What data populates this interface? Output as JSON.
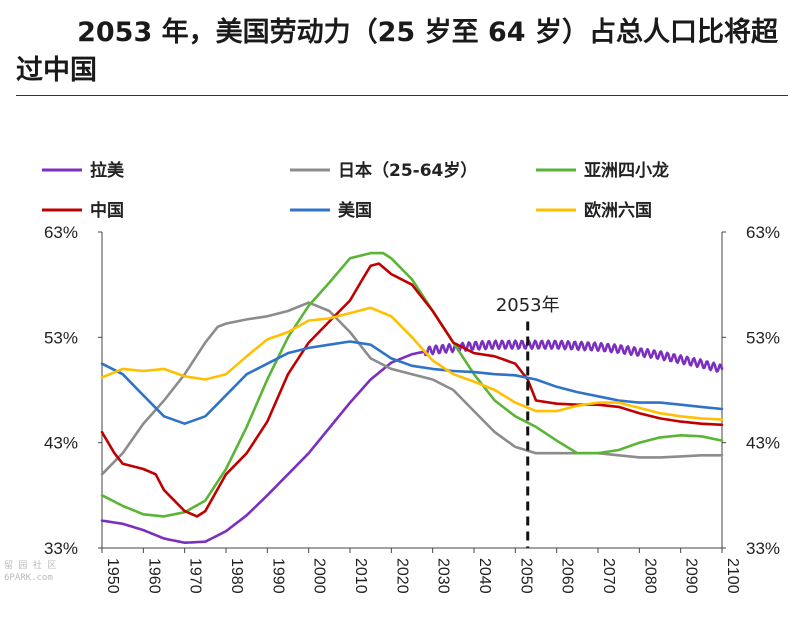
{
  "title": {
    "line1": "2053 年，美国劳动力（25 岁至 64 岁）占总人口比将超",
    "line2": "过中国"
  },
  "watermark": {
    "line1": "留 园 社 区",
    "line2": "6PARK.com"
  },
  "chart_data": {
    "type": "line",
    "x_ticks": [
      "1950",
      "1960",
      "1970",
      "1980",
      "1990",
      "2000",
      "2010",
      "2020",
      "2030",
      "2040",
      "2050",
      "2060",
      "2070",
      "2080",
      "2090",
      "2100"
    ],
    "y_ticks_left": [
      "63%",
      "53%",
      "43%",
      "33%"
    ],
    "y_ticks_right": [
      "63%",
      "53%",
      "43%",
      "33%"
    ],
    "ylim": [
      33,
      63
    ],
    "xlim": [
      1950,
      2100
    ],
    "legend_placement": "top",
    "annotation": {
      "x": 2053,
      "label": "2053年"
    },
    "series": [
      {
        "name": "拉美",
        "color": "#7b2fbf",
        "wavy_from": 2028,
        "points": [
          [
            1950,
            35.6
          ],
          [
            1955,
            35.3
          ],
          [
            1960,
            34.7
          ],
          [
            1965,
            33.9
          ],
          [
            1970,
            33.5
          ],
          [
            1975,
            33.6
          ],
          [
            1980,
            34.6
          ],
          [
            1985,
            36.1
          ],
          [
            1990,
            38
          ],
          [
            1995,
            40
          ],
          [
            2000,
            42
          ],
          [
            2005,
            44.4
          ],
          [
            2010,
            46.8
          ],
          [
            2015,
            49
          ],
          [
            2020,
            50.6
          ],
          [
            2025,
            51.4
          ],
          [
            2030,
            51.8
          ],
          [
            2035,
            52
          ],
          [
            2040,
            52.2
          ],
          [
            2045,
            52.3
          ],
          [
            2050,
            52.3
          ],
          [
            2055,
            52.3
          ],
          [
            2060,
            52.3
          ],
          [
            2065,
            52.2
          ],
          [
            2070,
            52.1
          ],
          [
            2075,
            51.9
          ],
          [
            2080,
            51.6
          ],
          [
            2085,
            51.3
          ],
          [
            2090,
            50.9
          ],
          [
            2095,
            50.5
          ],
          [
            2100,
            50
          ]
        ]
      },
      {
        "name": "日本（25-64岁）",
        "color": "#8c8c8c",
        "points": [
          [
            1950,
            40
          ],
          [
            1955,
            42
          ],
          [
            1960,
            44.8
          ],
          [
            1965,
            47
          ],
          [
            1970,
            49.5
          ],
          [
            1975,
            52.5
          ],
          [
            1978,
            54
          ],
          [
            1980,
            54.3
          ],
          [
            1985,
            54.7
          ],
          [
            1990,
            55
          ],
          [
            1995,
            55.5
          ],
          [
            2000,
            56.3
          ],
          [
            2005,
            55.5
          ],
          [
            2010,
            53.5
          ],
          [
            2015,
            51
          ],
          [
            2020,
            50
          ],
          [
            2025,
            49.5
          ],
          [
            2030,
            49
          ],
          [
            2035,
            48
          ],
          [
            2040,
            46
          ],
          [
            2045,
            44
          ],
          [
            2050,
            42.6
          ],
          [
            2055,
            42
          ],
          [
            2060,
            42
          ],
          [
            2065,
            42
          ],
          [
            2070,
            42
          ],
          [
            2075,
            41.8
          ],
          [
            2080,
            41.6
          ],
          [
            2085,
            41.6
          ],
          [
            2090,
            41.7
          ],
          [
            2095,
            41.8
          ],
          [
            2100,
            41.8
          ]
        ]
      },
      {
        "name": "亚洲四小龙",
        "color": "#5ab435",
        "points": [
          [
            1950,
            38
          ],
          [
            1955,
            37
          ],
          [
            1960,
            36.2
          ],
          [
            1965,
            36
          ],
          [
            1970,
            36.4
          ],
          [
            1975,
            37.5
          ],
          [
            1980,
            40.5
          ],
          [
            1985,
            44.5
          ],
          [
            1990,
            49
          ],
          [
            1995,
            53
          ],
          [
            2000,
            56
          ],
          [
            2005,
            58.2
          ],
          [
            2010,
            60.5
          ],
          [
            2015,
            61
          ],
          [
            2018,
            61
          ],
          [
            2020,
            60.5
          ],
          [
            2025,
            58.5
          ],
          [
            2030,
            55.5
          ],
          [
            2035,
            52.5
          ],
          [
            2040,
            49.5
          ],
          [
            2045,
            47
          ],
          [
            2050,
            45.5
          ],
          [
            2055,
            44.5
          ],
          [
            2060,
            43.2
          ],
          [
            2065,
            42
          ],
          [
            2070,
            42
          ],
          [
            2075,
            42.3
          ],
          [
            2080,
            43
          ],
          [
            2085,
            43.5
          ],
          [
            2090,
            43.7
          ],
          [
            2095,
            43.6
          ],
          [
            2100,
            43.2
          ]
        ]
      },
      {
        "name": "中国",
        "color": "#c00000",
        "points": [
          [
            1950,
            44
          ],
          [
            1953,
            42
          ],
          [
            1955,
            41
          ],
          [
            1960,
            40.5
          ],
          [
            1963,
            40
          ],
          [
            1965,
            38.5
          ],
          [
            1970,
            36.5
          ],
          [
            1973,
            36
          ],
          [
            1975,
            36.5
          ],
          [
            1980,
            40
          ],
          [
            1985,
            42
          ],
          [
            1990,
            45
          ],
          [
            1995,
            49.5
          ],
          [
            2000,
            52.5
          ],
          [
            2005,
            54.5
          ],
          [
            2010,
            56.5
          ],
          [
            2013,
            58.5
          ],
          [
            2015,
            59.8
          ],
          [
            2017,
            60
          ],
          [
            2020,
            59
          ],
          [
            2025,
            58
          ],
          [
            2030,
            55.5
          ],
          [
            2035,
            52.5
          ],
          [
            2040,
            51.5
          ],
          [
            2045,
            51.2
          ],
          [
            2050,
            50.5
          ],
          [
            2053,
            49
          ],
          [
            2055,
            47
          ],
          [
            2060,
            46.7
          ],
          [
            2065,
            46.6
          ],
          [
            2070,
            46.6
          ],
          [
            2075,
            46.4
          ],
          [
            2080,
            45.8
          ],
          [
            2085,
            45.3
          ],
          [
            2090,
            45
          ],
          [
            2095,
            44.8
          ],
          [
            2100,
            44.7
          ]
        ]
      },
      {
        "name": "美国",
        "color": "#2f73c8",
        "points": [
          [
            1950,
            50.5
          ],
          [
            1955,
            49.5
          ],
          [
            1960,
            47.5
          ],
          [
            1965,
            45.5
          ],
          [
            1970,
            44.8
          ],
          [
            1975,
            45.5
          ],
          [
            1980,
            47.5
          ],
          [
            1985,
            49.5
          ],
          [
            1990,
            50.5
          ],
          [
            1995,
            51.5
          ],
          [
            2000,
            52
          ],
          [
            2005,
            52.3
          ],
          [
            2010,
            52.6
          ],
          [
            2015,
            52.3
          ],
          [
            2020,
            51
          ],
          [
            2025,
            50.3
          ],
          [
            2030,
            50
          ],
          [
            2035,
            49.8
          ],
          [
            2040,
            49.7
          ],
          [
            2045,
            49.5
          ],
          [
            2050,
            49.4
          ],
          [
            2055,
            49
          ],
          [
            2060,
            48.3
          ],
          [
            2065,
            47.8
          ],
          [
            2070,
            47.4
          ],
          [
            2075,
            47
          ],
          [
            2080,
            46.8
          ],
          [
            2085,
            46.8
          ],
          [
            2090,
            46.6
          ],
          [
            2095,
            46.4
          ],
          [
            2100,
            46.2
          ]
        ]
      },
      {
        "name": "欧洲六国",
        "color": "#ffc000",
        "points": [
          [
            1950,
            49.2
          ],
          [
            1955,
            50
          ],
          [
            1960,
            49.8
          ],
          [
            1965,
            50
          ],
          [
            1970,
            49.3
          ],
          [
            1975,
            49
          ],
          [
            1980,
            49.5
          ],
          [
            1985,
            51.2
          ],
          [
            1990,
            52.8
          ],
          [
            1995,
            53.5
          ],
          [
            2000,
            54.6
          ],
          [
            2005,
            54.8
          ],
          [
            2010,
            55.3
          ],
          [
            2015,
            55.8
          ],
          [
            2020,
            55
          ],
          [
            2025,
            53
          ],
          [
            2030,
            50.8
          ],
          [
            2035,
            49.5
          ],
          [
            2040,
            48.8
          ],
          [
            2045,
            48
          ],
          [
            2050,
            46.8
          ],
          [
            2055,
            46
          ],
          [
            2060,
            46
          ],
          [
            2065,
            46.5
          ],
          [
            2070,
            46.8
          ],
          [
            2075,
            46.8
          ],
          [
            2080,
            46.3
          ],
          [
            2085,
            45.8
          ],
          [
            2090,
            45.5
          ],
          [
            2095,
            45.3
          ],
          [
            2100,
            45.2
          ]
        ]
      }
    ]
  }
}
